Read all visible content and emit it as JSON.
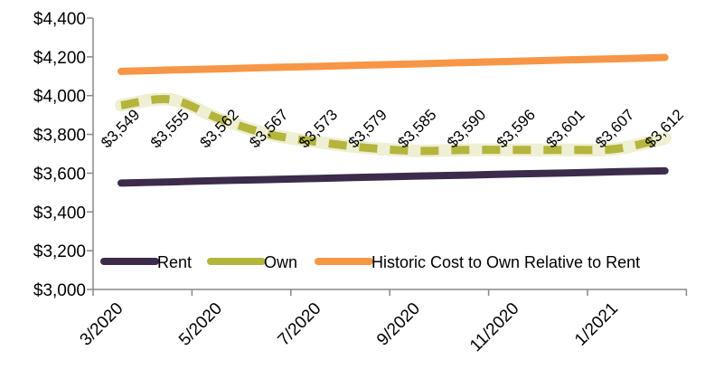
{
  "chart_data": {
    "type": "line",
    "x_tick_labels": [
      "3/2020",
      "5/2020",
      "7/2020",
      "9/2020",
      "11/2020",
      "1/2021"
    ],
    "ylim": [
      3000,
      4400
    ],
    "y_ticks": [
      3000,
      3200,
      3400,
      3600,
      3800,
      4000,
      4200,
      4400
    ],
    "y_tick_labels": [
      "$3,000",
      "$3,200",
      "$3,400",
      "$3,600",
      "$3,800",
      "$4,000",
      "$4,200",
      "$4,400"
    ],
    "grid": false,
    "legend_placement": "bottom",
    "series": [
      {
        "name": "Rent",
        "color": "#3c2b4a",
        "values": [
          3549,
          3555,
          3562,
          3567,
          3573,
          3579,
          3585,
          3590,
          3596,
          3601,
          3607,
          3612
        ],
        "labels": [
          "$3,549",
          "$3,555",
          "$3,562",
          "$3,567",
          "$3,573",
          "$3,579",
          "$3,585",
          "$3,590",
          "$3,596",
          "$3,601",
          "$3,607",
          "$3,612"
        ]
      },
      {
        "name": "Own",
        "color": "#b4b53d",
        "values": [
          3950,
          3980,
          3880,
          3800,
          3760,
          3730,
          3715,
          3720,
          3720,
          3720,
          3725,
          3780
        ]
      },
      {
        "name": "Historic Cost to Own Relative to Rent",
        "color": "#f79646",
        "values": [
          4125,
          4132,
          4138,
          4145,
          4151,
          4158,
          4164,
          4171,
          4177,
          4184,
          4190,
          4197
        ]
      }
    ]
  }
}
